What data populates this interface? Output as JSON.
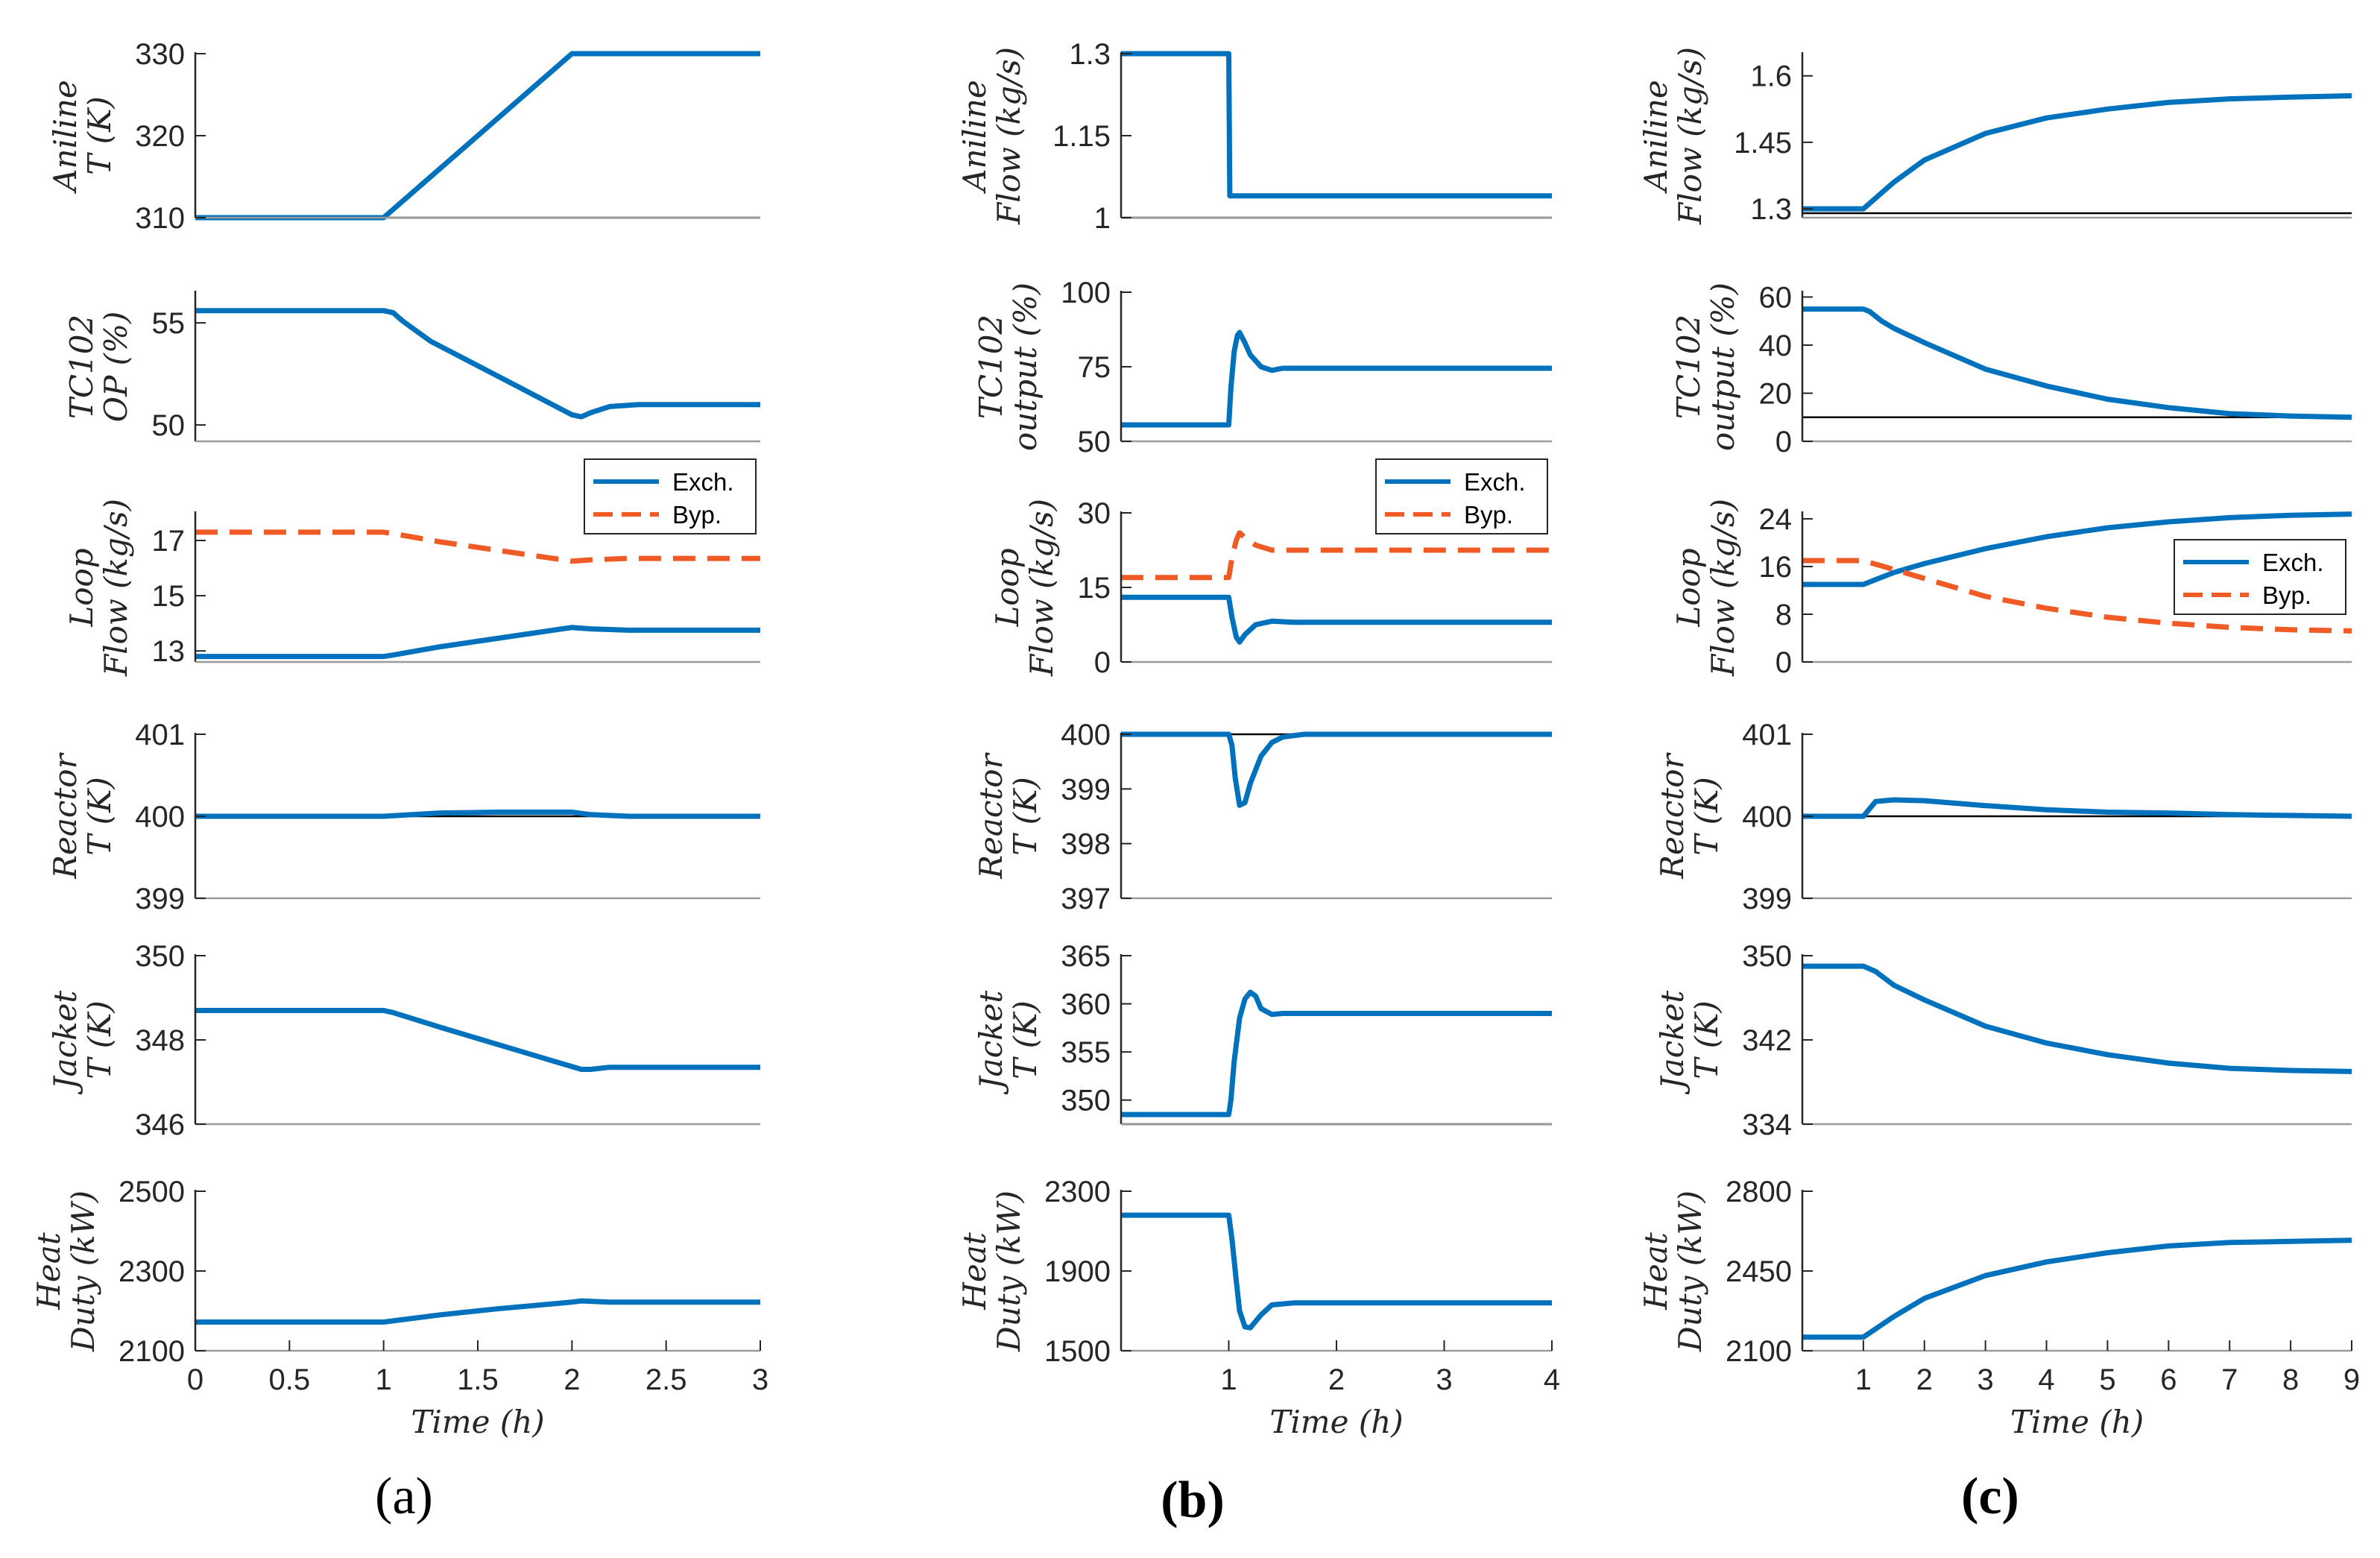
{
  "colors": {
    "exch": "#0072BD",
    "byp": "#F05A24",
    "ref": "#000000",
    "axis": "#262626"
  },
  "figure": {
    "panel_labels": [
      "(a)",
      "(b)",
      "(c)"
    ],
    "x_label": "Time (h)"
  },
  "chart_data": [
    {
      "type": "line",
      "column": "a",
      "row": 0,
      "ylabel": [
        "Aniline",
        "T (K)"
      ],
      "xlim": [
        0,
        3
      ],
      "ylim": [
        310,
        330
      ],
      "yticks": [
        310,
        320,
        330
      ],
      "ytick_labels": [
        "310",
        "320",
        "330"
      ],
      "ref_line": 310,
      "series": [
        {
          "name": "Exch.",
          "style": "solid",
          "x": [
            0,
            1,
            2.0,
            3
          ],
          "y": [
            310,
            310,
            330,
            330
          ]
        }
      ]
    },
    {
      "type": "line",
      "column": "a",
      "row": 1,
      "ylabel": [
        "TC102",
        "OP (%)"
      ],
      "xlim": [
        0,
        3
      ],
      "ylim": [
        49.2,
        56.5
      ],
      "yticks": [
        50,
        55
      ],
      "ytick_labels": [
        "50",
        "55"
      ],
      "series": [
        {
          "name": "Exch.",
          "style": "solid",
          "x": [
            0,
            1,
            1.05,
            1.1,
            1.25,
            1.5,
            1.75,
            2.0,
            2.05,
            2.1,
            2.2,
            2.35,
            2.6,
            3
          ],
          "y": [
            55.6,
            55.6,
            55.5,
            55.1,
            54.1,
            52.9,
            51.7,
            50.5,
            50.4,
            50.6,
            50.9,
            51.0,
            51.0,
            51.0
          ]
        }
      ]
    },
    {
      "type": "line",
      "column": "a",
      "row": 2,
      "ylabel": [
        "Loop",
        "Flow (kg/s)"
      ],
      "xlim": [
        0,
        3
      ],
      "ylim": [
        12.6,
        18.0
      ],
      "yticks": [
        13,
        15,
        17
      ],
      "ytick_labels": [
        "13",
        "15",
        "17"
      ],
      "legend": {
        "entries": [
          "Exch.",
          "Byp."
        ],
        "loc": "top-right"
      },
      "series": [
        {
          "name": "Exch.",
          "style": "solid",
          "x": [
            0,
            1,
            1.05,
            1.3,
            1.6,
            2.0,
            2.1,
            2.3,
            3
          ],
          "y": [
            12.8,
            12.8,
            12.85,
            13.15,
            13.45,
            13.85,
            13.8,
            13.75,
            13.75
          ]
        },
        {
          "name": "Byp.",
          "style": "dashed",
          "x": [
            0,
            1,
            1.05,
            1.3,
            1.6,
            2.0,
            2.1,
            2.3,
            3
          ],
          "y": [
            17.3,
            17.3,
            17.25,
            16.95,
            16.65,
            16.25,
            16.3,
            16.35,
            16.35
          ]
        }
      ]
    },
    {
      "type": "line",
      "column": "a",
      "row": 3,
      "ylabel": [
        "Reactor",
        "T (K)"
      ],
      "xlim": [
        0,
        3
      ],
      "ylim": [
        399,
        401
      ],
      "yticks": [
        399,
        400,
        401
      ],
      "ytick_labels": [
        "399",
        "400",
        "401"
      ],
      "ref_line": 400,
      "series": [
        {
          "name": "Exch.",
          "style": "solid",
          "x": [
            0,
            1,
            1.3,
            1.6,
            2.0,
            2.1,
            2.3,
            3
          ],
          "y": [
            400,
            400,
            400.04,
            400.05,
            400.05,
            400.02,
            400.0,
            400.0
          ]
        }
      ]
    },
    {
      "type": "line",
      "column": "a",
      "row": 4,
      "ylabel": [
        "Jacket",
        "T (K)"
      ],
      "xlim": [
        0,
        3
      ],
      "ylim": [
        346,
        350
      ],
      "yticks": [
        346,
        348,
        350
      ],
      "ytick_labels": [
        "346",
        "348",
        "350"
      ],
      "series": [
        {
          "name": "Exch.",
          "style": "solid",
          "x": [
            0,
            1,
            1.05,
            1.3,
            1.6,
            1.9,
            2.05,
            2.1,
            2.2,
            2.4,
            3
          ],
          "y": [
            348.7,
            348.7,
            348.65,
            348.3,
            347.9,
            347.5,
            347.3,
            347.3,
            347.35,
            347.35,
            347.35
          ]
        }
      ]
    },
    {
      "type": "line",
      "column": "a",
      "row": 5,
      "ylabel": [
        "Heat",
        "Duty (kW)"
      ],
      "xlim": [
        0,
        3
      ],
      "ylim": [
        2100,
        2500
      ],
      "yticks": [
        2100,
        2300,
        2500
      ],
      "ytick_labels": [
        "2100",
        "2300",
        "2500"
      ],
      "xticks": [
        0,
        0.5,
        1,
        1.5,
        2,
        2.5,
        3
      ],
      "xtick_labels": [
        "0",
        "0.5",
        "1",
        "1.5",
        "2",
        "2.5",
        "3"
      ],
      "xlabel": "Time (h)",
      "series": [
        {
          "name": "Exch.",
          "style": "solid",
          "x": [
            0,
            1,
            1.05,
            1.3,
            1.6,
            2.0,
            2.05,
            2.2,
            3
          ],
          "y": [
            2172,
            2172,
            2175,
            2190,
            2205,
            2222,
            2225,
            2222,
            2222
          ]
        }
      ]
    },
    {
      "type": "line",
      "column": "b",
      "row": 0,
      "ylabel": [
        "Aniline",
        "Flow (kg/s)"
      ],
      "xlim": [
        0,
        4
      ],
      "ylim": [
        1.0,
        1.3
      ],
      "yticks": [
        1,
        1.15,
        1.3
      ],
      "ytick_labels": [
        "1",
        "1.15",
        "1.3"
      ],
      "ref_line": 1.0,
      "series": [
        {
          "name": "Exch.",
          "style": "solid",
          "x": [
            0,
            1.0,
            1.01,
            4
          ],
          "y": [
            1.3,
            1.3,
            1.04,
            1.04
          ]
        }
      ]
    },
    {
      "type": "line",
      "column": "b",
      "row": 1,
      "ylabel": [
        "TC102",
        "output (%)"
      ],
      "xlim": [
        0,
        4
      ],
      "ylim": [
        50,
        100
      ],
      "yticks": [
        50,
        75,
        100
      ],
      "ytick_labels": [
        "50",
        "75",
        "100"
      ],
      "series": [
        {
          "name": "Exch.",
          "style": "solid",
          "x": [
            0,
            1.0,
            1.02,
            1.05,
            1.08,
            1.1,
            1.15,
            1.2,
            1.3,
            1.4,
            1.5,
            1.7,
            4
          ],
          "y": [
            55.5,
            55.5,
            68,
            80,
            85.5,
            86.5,
            83,
            79,
            75,
            73.8,
            74.5,
            74.5,
            74.5
          ]
        }
      ]
    },
    {
      "type": "line",
      "column": "b",
      "row": 2,
      "ylabel": [
        "Loop",
        "Flow (kg/s)"
      ],
      "xlim": [
        0,
        4
      ],
      "ylim": [
        0,
        30
      ],
      "yticks": [
        0,
        15,
        30
      ],
      "ytick_labels": [
        "0",
        "15",
        "30"
      ],
      "legend": {
        "entries": [
          "Exch.",
          "Byp."
        ],
        "loc": "top-right"
      },
      "series": [
        {
          "name": "Exch.",
          "style": "solid",
          "x": [
            0,
            1.0,
            1.03,
            1.07,
            1.1,
            1.15,
            1.25,
            1.4,
            1.6,
            4
          ],
          "y": [
            13,
            13,
            9,
            5,
            4,
            5.5,
            7.5,
            8.2,
            8,
            8
          ]
        },
        {
          "name": "Byp.",
          "style": "dashed",
          "x": [
            0,
            1.0,
            1.03,
            1.07,
            1.1,
            1.15,
            1.25,
            1.4,
            1.6,
            4
          ],
          "y": [
            17,
            17,
            21,
            24.5,
            26,
            25,
            23.5,
            22.5,
            22.5,
            22.5
          ]
        }
      ]
    },
    {
      "type": "line",
      "column": "b",
      "row": 3,
      "ylabel": [
        "Reactor",
        "T (K)"
      ],
      "xlim": [
        0,
        4
      ],
      "ylim": [
        397,
        400
      ],
      "yticks": [
        397,
        398,
        399,
        400
      ],
      "ytick_labels": [
        "397",
        "398",
        "399",
        "400"
      ],
      "ref_line": 400,
      "series": [
        {
          "name": "Exch.",
          "style": "solid",
          "x": [
            0,
            1.0,
            1.03,
            1.06,
            1.1,
            1.15,
            1.2,
            1.3,
            1.4,
            1.5,
            1.7,
            4
          ],
          "y": [
            400,
            400,
            399.8,
            399.2,
            398.7,
            398.75,
            399.1,
            399.6,
            399.85,
            399.95,
            400,
            400
          ]
        }
      ]
    },
    {
      "type": "line",
      "column": "b",
      "row": 4,
      "ylabel": [
        "Jacket",
        "T (K)"
      ],
      "xlim": [
        0,
        4
      ],
      "ylim": [
        347.5,
        365
      ],
      "yticks": [
        350,
        355,
        360,
        365
      ],
      "ytick_labels": [
        "350",
        "355",
        "360",
        "365"
      ],
      "ref_line": 347.5,
      "series": [
        {
          "name": "Exch.",
          "style": "solid",
          "x": [
            0,
            1.0,
            1.02,
            1.05,
            1.1,
            1.15,
            1.2,
            1.25,
            1.3,
            1.4,
            1.5,
            4
          ],
          "y": [
            348.5,
            348.5,
            350,
            354,
            358.5,
            360.5,
            361.2,
            360.8,
            359.5,
            358.9,
            359,
            359
          ]
        }
      ]
    },
    {
      "type": "line",
      "column": "b",
      "row": 5,
      "ylabel": [
        "Heat",
        "Duty (kW)"
      ],
      "xlim": [
        0,
        4
      ],
      "ylim": [
        1500,
        2300
      ],
      "yticks": [
        1500,
        1900,
        2300
      ],
      "ytick_labels": [
        "1500",
        "1900",
        "2300"
      ],
      "xticks": [
        1,
        2,
        3,
        4
      ],
      "xtick_labels": [
        "1",
        "2",
        "3",
        "4"
      ],
      "xlabel": "Time (h)",
      "series": [
        {
          "name": "Exch.",
          "style": "solid",
          "x": [
            0,
            1.0,
            1.03,
            1.07,
            1.1,
            1.15,
            1.2,
            1.3,
            1.4,
            1.6,
            4
          ],
          "y": [
            2180,
            2180,
            2060,
            1850,
            1700,
            1620,
            1615,
            1680,
            1730,
            1740,
            1740
          ]
        }
      ]
    },
    {
      "type": "line",
      "column": "c",
      "row": 0,
      "ylabel": [
        "Aniline",
        "Flow (kg/s)"
      ],
      "xlim": [
        0,
        9
      ],
      "ylim": [
        1.28,
        1.65
      ],
      "yticks": [
        1.3,
        1.45,
        1.6
      ],
      "ytick_labels": [
        "1.3",
        "1.45",
        "1.6"
      ],
      "ref_line": 1.29,
      "series": [
        {
          "name": "Exch.",
          "style": "solid",
          "x": [
            0,
            1,
            1.5,
            2,
            3,
            4,
            5,
            6,
            7,
            8,
            9
          ],
          "y": [
            1.3,
            1.3,
            1.36,
            1.41,
            1.47,
            1.505,
            1.525,
            1.54,
            1.548,
            1.552,
            1.555
          ]
        }
      ]
    },
    {
      "type": "line",
      "column": "c",
      "row": 1,
      "ylabel": [
        "TC102",
        "output (%)"
      ],
      "xlim": [
        0,
        9
      ],
      "ylim": [
        0,
        62
      ],
      "yticks": [
        0,
        20,
        40,
        60
      ],
      "ytick_labels": [
        "0",
        "20",
        "40",
        "60"
      ],
      "ref_line": 10,
      "series": [
        {
          "name": "Exch.",
          "style": "solid",
          "x": [
            0,
            1,
            1.1,
            1.3,
            1.5,
            2,
            3,
            4,
            5,
            6,
            7,
            8,
            9
          ],
          "y": [
            55,
            55,
            54,
            50,
            47,
            41,
            30,
            23,
            17.5,
            14,
            11.5,
            10.5,
            10
          ]
        }
      ]
    },
    {
      "type": "line",
      "column": "c",
      "row": 2,
      "ylabel": [
        "Loop",
        "Flow (kg/s)"
      ],
      "xlim": [
        0,
        9
      ],
      "ylim": [
        0,
        25
      ],
      "yticks": [
        0,
        8,
        16,
        24
      ],
      "ytick_labels": [
        "0",
        "8",
        "16",
        "24"
      ],
      "legend": {
        "entries": [
          "Exch.",
          "Byp."
        ],
        "loc": "right"
      },
      "series": [
        {
          "name": "Exch.",
          "style": "solid",
          "x": [
            0,
            1,
            1.5,
            2,
            3,
            4,
            5,
            6,
            7,
            8,
            9
          ],
          "y": [
            13,
            13,
            15,
            16.5,
            19,
            21,
            22.5,
            23.5,
            24.2,
            24.6,
            24.8
          ]
        },
        {
          "name": "Byp.",
          "style": "dashed",
          "x": [
            0,
            1,
            1.5,
            2,
            3,
            4,
            5,
            6,
            7,
            8,
            9
          ],
          "y": [
            17,
            17,
            15.5,
            14,
            11,
            9,
            7.5,
            6.5,
            5.8,
            5.4,
            5.2
          ]
        }
      ]
    },
    {
      "type": "line",
      "column": "c",
      "row": 3,
      "ylabel": [
        "Reactor",
        "T (K)"
      ],
      "xlim": [
        0,
        9
      ],
      "ylim": [
        399,
        401
      ],
      "yticks": [
        399,
        400,
        401
      ],
      "ytick_labels": [
        "399",
        "400",
        "401"
      ],
      "ref_line": 400,
      "series": [
        {
          "name": "Exch.",
          "style": "solid",
          "x": [
            0,
            1,
            1.2,
            1.5,
            2,
            3,
            4,
            5,
            6,
            7,
            8,
            9
          ],
          "y": [
            400,
            400,
            400.18,
            400.2,
            400.19,
            400.13,
            400.08,
            400.05,
            400.04,
            400.02,
            400.01,
            400.0
          ]
        }
      ]
    },
    {
      "type": "line",
      "column": "c",
      "row": 4,
      "ylabel": [
        "Jacket",
        "T (K)"
      ],
      "xlim": [
        0,
        9
      ],
      "ylim": [
        334,
        350
      ],
      "yticks": [
        334,
        342,
        350
      ],
      "ytick_labels": [
        "334",
        "342",
        "350"
      ],
      "series": [
        {
          "name": "Exch.",
          "style": "solid",
          "x": [
            0,
            1,
            1.2,
            1.5,
            2,
            3,
            4,
            5,
            6,
            7,
            8,
            9
          ],
          "y": [
            349,
            349,
            348.5,
            347.2,
            345.8,
            343.3,
            341.7,
            340.6,
            339.8,
            339.3,
            339.1,
            339.0
          ]
        }
      ]
    },
    {
      "type": "line",
      "column": "c",
      "row": 5,
      "ylabel": [
        "Heat",
        "Duty (kW)"
      ],
      "xlim": [
        0,
        9
      ],
      "ylim": [
        2100,
        2800
      ],
      "yticks": [
        2100,
        2450,
        2800
      ],
      "ytick_labels": [
        "2100",
        "2450",
        "2800"
      ],
      "xticks": [
        1,
        2,
        3,
        4,
        5,
        6,
        7,
        8,
        9
      ],
      "xtick_labels": [
        "1",
        "2",
        "3",
        "4",
        "5",
        "6",
        "7",
        "8",
        "9"
      ],
      "xlabel": "Time (h)",
      "series": [
        {
          "name": "Exch.",
          "style": "solid",
          "x": [
            0,
            1,
            1.5,
            2,
            3,
            4,
            5,
            6,
            7,
            8,
            9
          ],
          "y": [
            2160,
            2160,
            2250,
            2330,
            2430,
            2490,
            2530,
            2560,
            2575,
            2580,
            2585
          ]
        }
      ]
    }
  ]
}
